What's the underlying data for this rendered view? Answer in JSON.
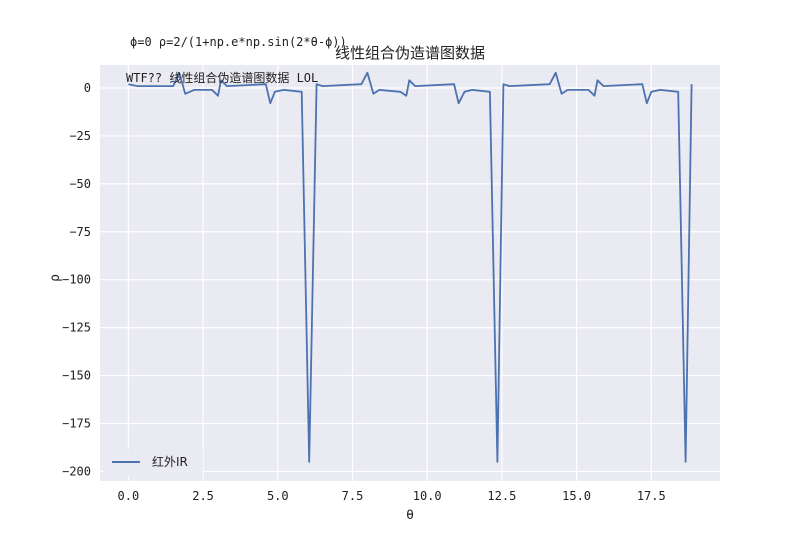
{
  "chart_data": {
    "type": "line",
    "title": "线性组合伪造谱图数据",
    "formula_note": "ϕ=0 ρ=2/(1+np.e*np.sin(2*θ-ϕ))",
    "inner_note": "WTF?? 线性组合伪造谱图数据 LOL",
    "xlabel": "θ",
    "ylabel": "ρ",
    "xlim": [
      -0.95,
      19.8
    ],
    "ylim": [
      -205,
      12
    ],
    "x_ticks": [
      0.0,
      2.5,
      5.0,
      7.5,
      10.0,
      12.5,
      15.0,
      17.5
    ],
    "x_tick_labels": [
      "0.0",
      "2.5",
      "5.0",
      "7.5",
      "10.0",
      "12.5",
      "15.0",
      "17.5"
    ],
    "y_ticks": [
      0,
      -25,
      -50,
      -75,
      -100,
      -125,
      -150,
      -175,
      -200
    ],
    "y_tick_labels": [
      "0",
      "−25",
      "−50",
      "−75",
      "−100",
      "−125",
      "−150",
      "−175",
      "−200"
    ],
    "grid": true,
    "legend_position": "lower-left",
    "series": [
      {
        "name": "红外IR",
        "color": "#4c72b0",
        "x": [
          0.0,
          0.3,
          1.5,
          1.7,
          1.9,
          2.2,
          2.8,
          3.0,
          3.1,
          3.3,
          4.6,
          4.75,
          4.9,
          5.2,
          5.8,
          6.05,
          6.3,
          6.5,
          7.8,
          8.0,
          8.2,
          8.4,
          9.1,
          9.3,
          9.4,
          9.6,
          10.9,
          11.05,
          11.25,
          11.5,
          12.1,
          12.35,
          12.55,
          12.75,
          14.1,
          14.3,
          14.5,
          14.7,
          15.4,
          15.6,
          15.7,
          15.9,
          17.2,
          17.35,
          17.5,
          17.8,
          18.4,
          18.65,
          18.85
        ],
        "y": [
          2,
          1,
          1,
          8,
          -3,
          -1,
          -1,
          -4,
          4,
          1,
          2,
          -8,
          -2,
          -1,
          -2,
          -195,
          2,
          1,
          2,
          8,
          -3,
          -1,
          -2,
          -4,
          4,
          1,
          2,
          -8,
          -2,
          -1,
          -2,
          -195,
          2,
          1,
          2,
          8,
          -3,
          -1,
          -1,
          -4,
          4,
          1,
          2,
          -8,
          -2,
          -1,
          -2,
          -195,
          2
        ]
      }
    ]
  }
}
